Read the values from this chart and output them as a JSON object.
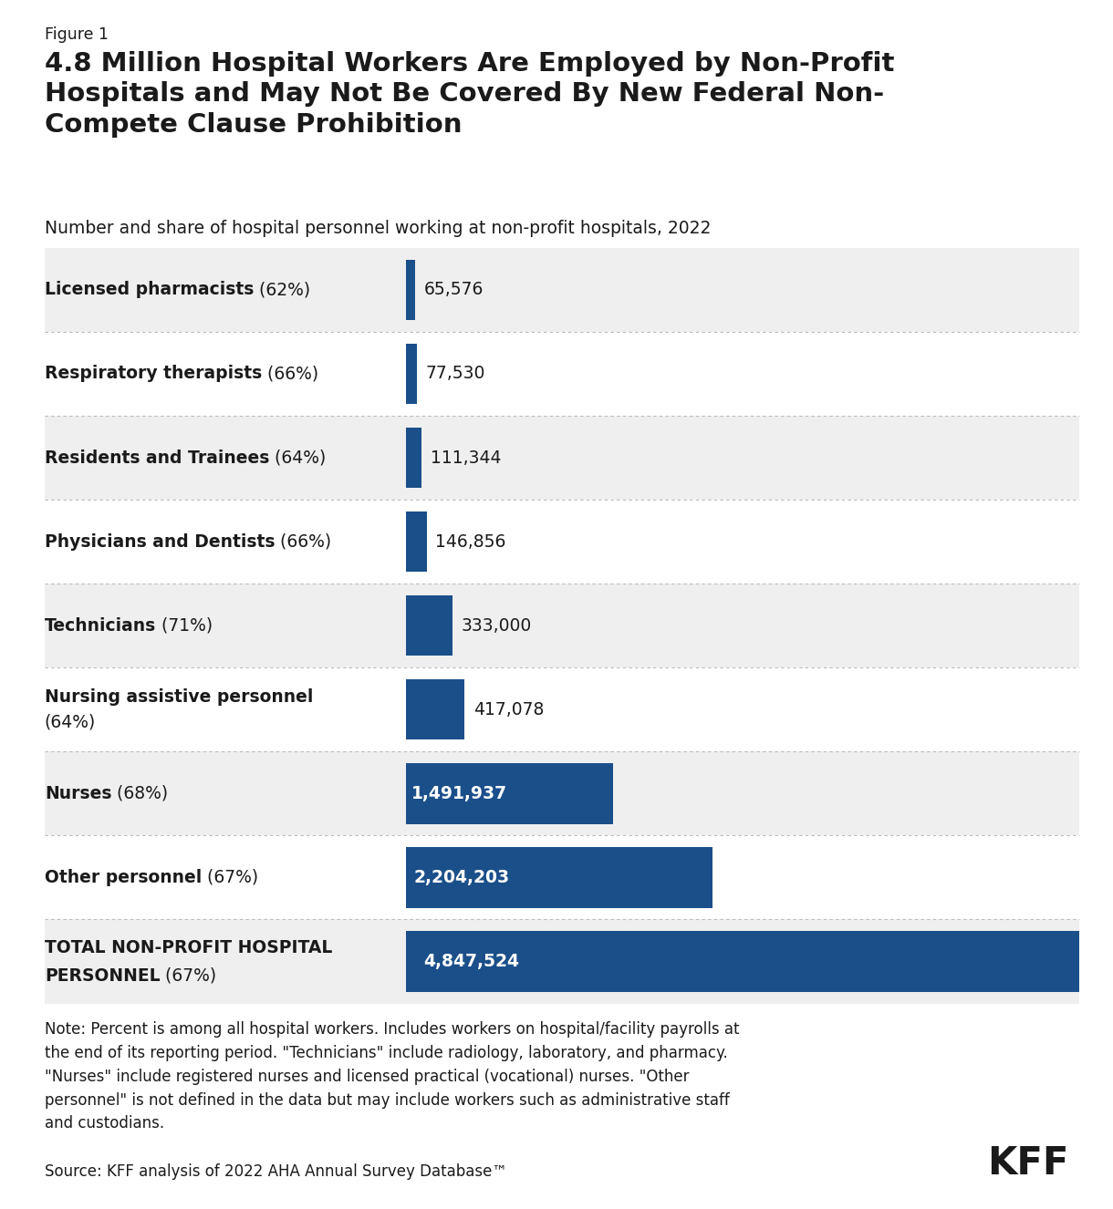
{
  "figure_label": "Figure 1",
  "title": "4.8 Million Hospital Workers Are Employed by Non-Profit\nHospitals and May Not Be Covered By New Federal Non-\nCompete Clause Prohibition",
  "subtitle": "Number and share of hospital personnel working at non-profit hospitals, 2022",
  "categories_bold": [
    "Licensed pharmacists",
    "Respiratory therapists",
    "Residents and Trainees",
    "Physicians and Dentists",
    "Technicians",
    "Nursing assistive personnel",
    "Nurses",
    "Other personnel",
    "TOTAL NON-PROFIT HOSPITAL\nPERSONNEL"
  ],
  "categories_pct": [
    " (62%)",
    " (66%)",
    " (64%)",
    " (66%)",
    " (71%)",
    "\n(64%)",
    " (68%)",
    " (67%)",
    " (67%)"
  ],
  "values": [
    65576,
    77530,
    111344,
    146856,
    333000,
    417078,
    1491937,
    2204203,
    4847524
  ],
  "value_labels": [
    "65,576",
    "77,530",
    "111,344",
    "146,856",
    "333,000",
    "417,078",
    "1,491,937",
    "2,204,203",
    "4,847,524"
  ],
  "bar_color": "#1B4F8A",
  "bg_color_odd": "#EFEFEF",
  "bg_color_even": "#FFFFFF",
  "max_value": 4847524,
  "note_text": "Note: Percent is among all hospital workers. Includes workers on hospital/facility payrolls at\nthe end of its reporting period. \"Technicians\" include radiology, laboratory, and pharmacy.\n\"Nurses\" include registered nurses and licensed practical (vocational) nurses. \"Other\npersonnel\" is not defined in the data but may include workers such as administrative staff\nand custodians.",
  "source_text": "Source: KFF analysis of 2022 AHA Annual Survey Database™",
  "kff_text": "KFF",
  "background_color": "#FFFFFF"
}
